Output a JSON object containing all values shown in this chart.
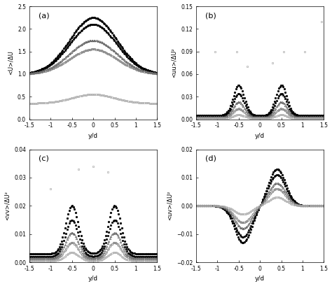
{
  "panels": [
    "a",
    "b",
    "c",
    "d"
  ],
  "ylabels": [
    "<U>/ΔU",
    "<uu>/ΔU²",
    "<vv>/ΔU²",
    "<uv>/ΔU²"
  ],
  "xlabel": "y/d",
  "xlim": [
    -1.5,
    1.5
  ],
  "ylims": [
    [
      0,
      2.5
    ],
    [
      0,
      0.15
    ],
    [
      0,
      0.04
    ],
    [
      -0.02,
      0.02
    ]
  ],
  "yticks_a": [
    0,
    0.5,
    1.0,
    1.5,
    2.0,
    2.5
  ],
  "yticks_b": [
    0,
    0.03,
    0.06,
    0.09,
    0.12,
    0.15
  ],
  "yticks_c": [
    0,
    0.01,
    0.02,
    0.03,
    0.04
  ],
  "yticks_d": [
    -0.02,
    -0.01,
    0,
    0.01,
    0.02
  ],
  "series_markers": [
    "o",
    "s",
    "^",
    "o",
    "s"
  ],
  "series_colors": [
    "#000000",
    "#000000",
    "#555555",
    "#777777",
    "#aaaaaa"
  ],
  "series_filled": [
    true,
    true,
    false,
    false,
    false
  ],
  "series_ms": [
    1.8,
    1.8,
    1.8,
    1.8,
    1.8
  ]
}
